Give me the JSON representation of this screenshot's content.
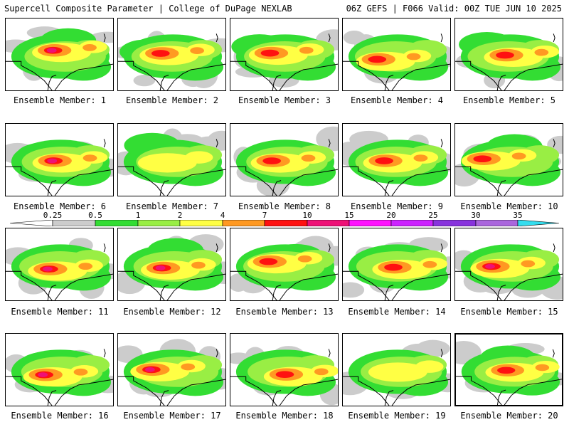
{
  "header": {
    "left": "Supercell Composite Parameter | College of DuPage NEXLAB",
    "right": "06Z GEFS | F066 Valid: 00Z TUE JUN 10 2025"
  },
  "members": [
    {
      "label": "Ensemble Member: 1",
      "intensity": 5
    },
    {
      "label": "Ensemble Member: 2",
      "intensity": 4
    },
    {
      "label": "Ensemble Member: 3",
      "intensity": 4
    },
    {
      "label": "Ensemble Member: 4",
      "intensity": 4
    },
    {
      "label": "Ensemble Member: 5",
      "intensity": 4
    },
    {
      "label": "Ensemble Member: 6",
      "intensity": 5
    },
    {
      "label": "Ensemble Member: 7",
      "intensity": 3
    },
    {
      "label": "Ensemble Member: 8",
      "intensity": 4
    },
    {
      "label": "Ensemble Member: 9",
      "intensity": 4
    },
    {
      "label": "Ensemble Member: 10",
      "intensity": 4
    },
    {
      "label": "Ensemble Member: 11",
      "intensity": 5
    },
    {
      "label": "Ensemble Member: 12",
      "intensity": 5
    },
    {
      "label": "Ensemble Member: 13",
      "intensity": 4
    },
    {
      "label": "Ensemble Member: 14",
      "intensity": 4
    },
    {
      "label": "Ensemble Member: 15",
      "intensity": 5
    },
    {
      "label": "Ensemble Member: 16",
      "intensity": 5
    },
    {
      "label": "Ensemble Member: 17",
      "intensity": 5
    },
    {
      "label": "Ensemble Member: 18",
      "intensity": 4
    },
    {
      "label": "Ensemble Member: 19",
      "intensity": 3
    },
    {
      "label": "Ensemble Member: 20",
      "intensity": 4
    }
  ],
  "colorbar": {
    "ticks": [
      "0.25",
      "0.5",
      "1",
      "2",
      "4",
      "7",
      "10",
      "15",
      "20",
      "25",
      "30",
      "35"
    ],
    "colors": [
      "#ffffff",
      "#cccccc",
      "#33dd33",
      "#99ee44",
      "#ffff44",
      "#ff9922",
      "#ff1111",
      "#ee1177",
      "#ff11ff",
      "#cc22ff",
      "#8833dd",
      "#aa66dd",
      "#33ddee"
    ]
  },
  "map_colors": {
    "gray": "#cccccc",
    "green": "#33dd33",
    "lightgreen": "#99ee44",
    "yellow": "#ffff44",
    "orange": "#ff9922",
    "red": "#ff1111",
    "magenta": "#ee1177",
    "border": "#000000"
  }
}
